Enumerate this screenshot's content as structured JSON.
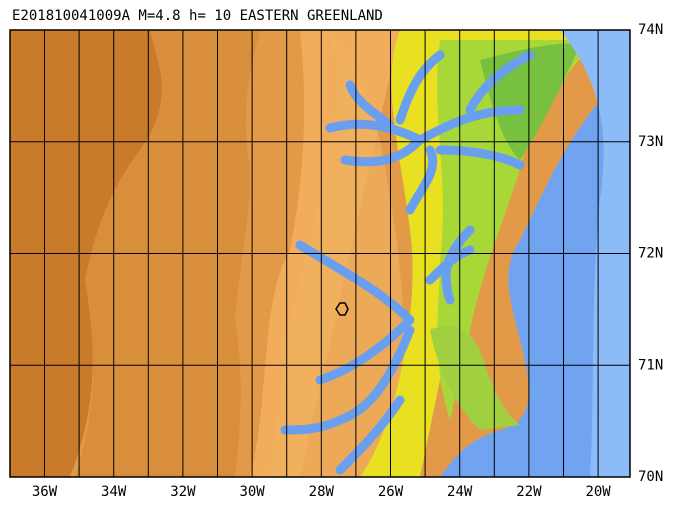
{
  "title": "E201810041009A M=4.8 h= 10 EASTERN GREENLAND",
  "lat_labels": [
    "74N",
    "73N",
    "72N",
    "71N",
    "70N"
  ],
  "lon_labels": [
    "36W",
    "34W",
    "32W",
    "30W",
    "28W",
    "26W",
    "24W",
    "22W",
    "20W"
  ]
}
